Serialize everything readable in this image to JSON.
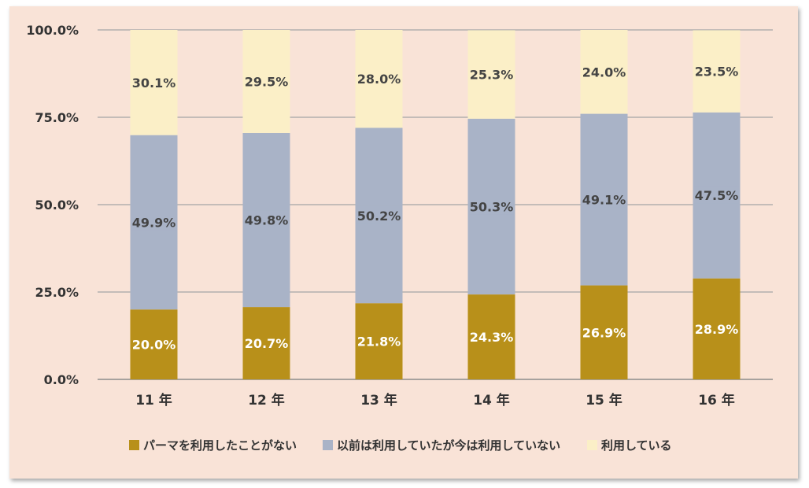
{
  "chart_data": {
    "type": "bar",
    "stacked": true,
    "categories": [
      "11 年",
      "12 年",
      "13 年",
      "14 年",
      "15 年",
      "16 年"
    ],
    "series": [
      {
        "name": "パーマを利用したことがない",
        "color": "#b8901a",
        "label_color": "#ffffff",
        "values": [
          20.0,
          20.7,
          21.8,
          24.3,
          26.9,
          28.9
        ],
        "labels": [
          "20.0%",
          "20.7%",
          "21.8%",
          "24.3%",
          "26.9%",
          "28.9%"
        ]
      },
      {
        "name": "以前は利用していたが今は利用していない",
        "color": "#a9b3c7",
        "label_color": "#444444",
        "values": [
          49.9,
          49.8,
          50.2,
          50.3,
          49.1,
          47.5
        ],
        "labels": [
          "49.9%",
          "49.8%",
          "50.2%",
          "50.3%",
          "49.1%",
          "47.5%"
        ]
      },
      {
        "name": "利用している",
        "color": "#fbefc7",
        "label_color": "#444444",
        "values": [
          30.1,
          29.5,
          28.0,
          25.3,
          24.0,
          23.5
        ],
        "labels": [
          "30.1%",
          "29.5%",
          "28.0%",
          "25.3%",
          "24.0%",
          "23.5%"
        ]
      }
    ],
    "y_ticks": [
      0,
      25,
      50,
      75,
      100
    ],
    "y_tick_labels": [
      "0.0%",
      "25.0%",
      "50.0%",
      "75.0%",
      "100.0%"
    ],
    "ylim": [
      0,
      100
    ],
    "grid": true,
    "legend_position": "bottom"
  }
}
